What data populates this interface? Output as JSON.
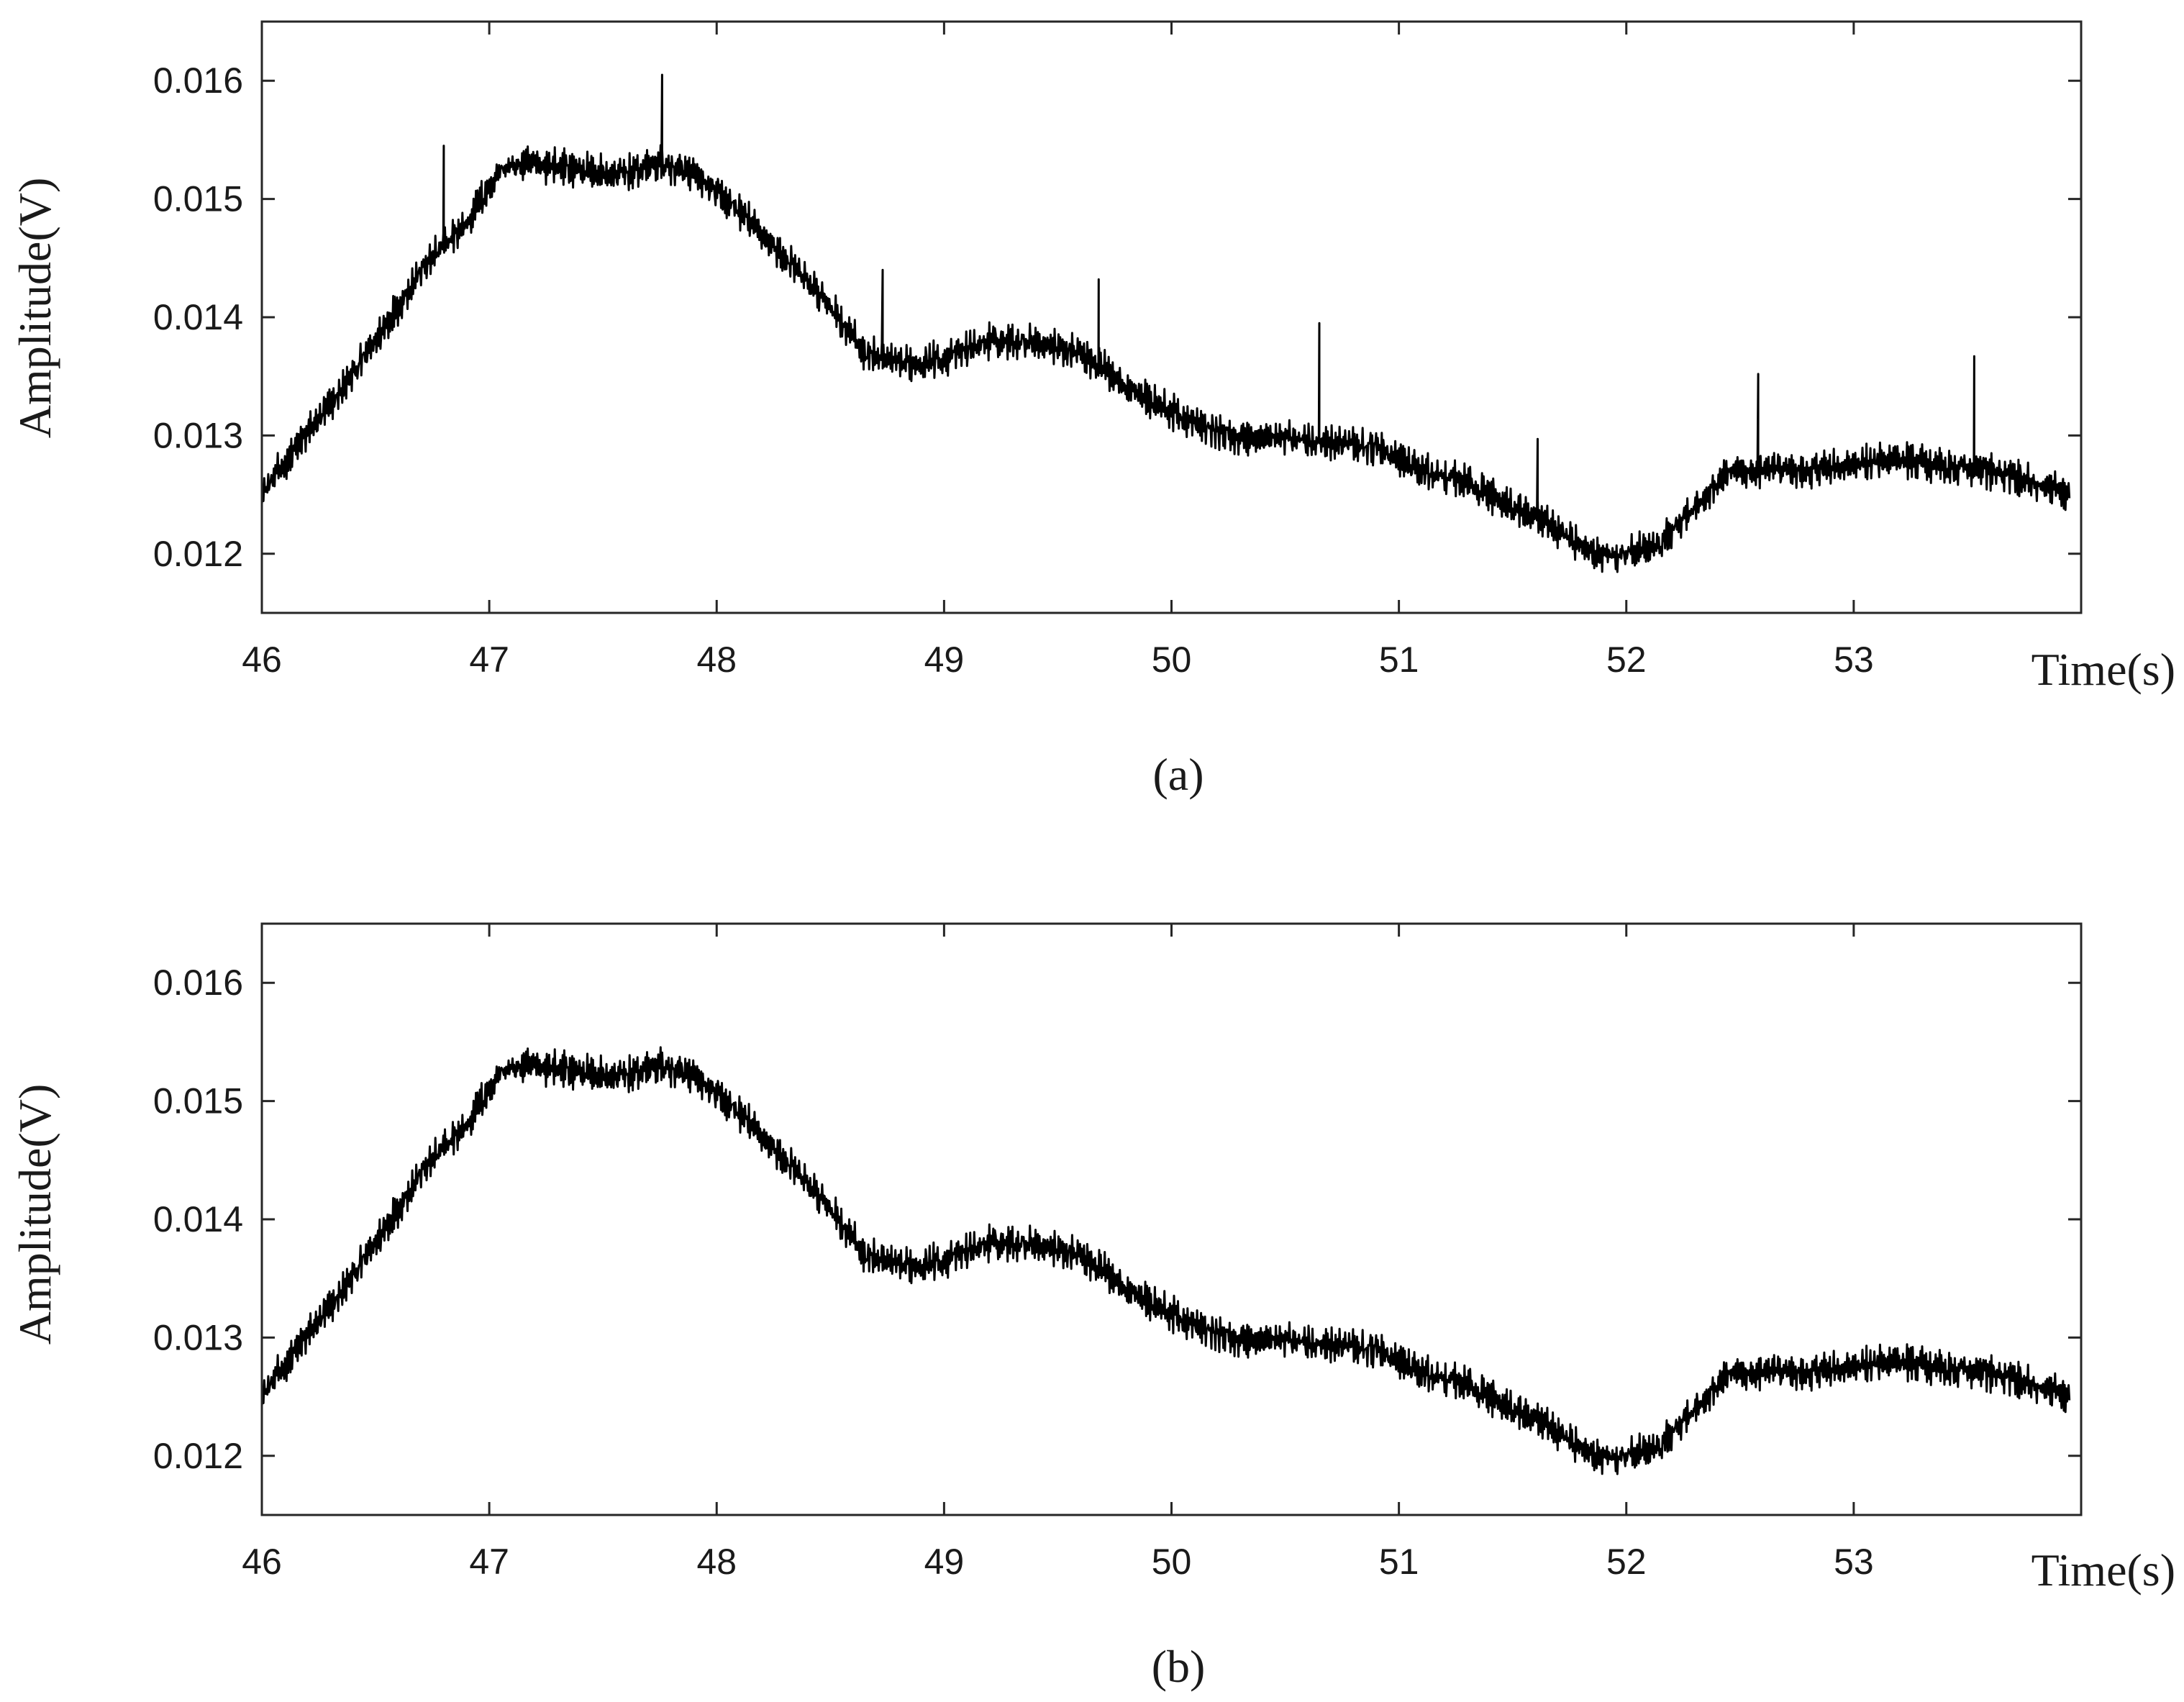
{
  "chart_data": [
    {
      "type": "line",
      "caption": "(a)",
      "xlabel": "Time(s)",
      "ylabel": "Amplitude(V)",
      "xlim": [
        46,
        54
      ],
      "ylim": [
        0.0115,
        0.0165
      ],
      "xticks": [
        46,
        47,
        48,
        49,
        50,
        51,
        52,
        53
      ],
      "yticks": [
        0.012,
        0.013,
        0.014,
        0.015,
        0.016
      ],
      "xtick_labels": [
        "46",
        "47",
        "48",
        "49",
        "50",
        "51",
        "52",
        "53"
      ],
      "ytick_labels": [
        "0.012",
        "0.013",
        "0.014",
        "0.015",
        "0.016"
      ],
      "grid": false,
      "line_color": "#000000",
      "series": [
        {
          "trend_x": [
            46.0,
            46.15,
            46.3,
            46.5,
            46.7,
            46.9,
            47.05,
            47.2,
            47.4,
            47.55,
            47.75,
            47.9,
            48.1,
            48.3,
            48.5,
            48.65,
            48.8,
            49.0,
            49.2,
            49.4,
            49.6,
            49.75,
            49.9,
            50.1,
            50.3,
            50.5,
            50.7,
            50.9,
            51.1,
            51.3,
            51.5,
            51.7,
            51.85,
            52.0,
            52.15,
            52.3,
            52.45,
            52.6,
            52.8,
            53.0,
            53.2,
            53.4,
            53.6,
            53.8,
            53.95
          ],
          "trend_y": [
            0.0125,
            0.0129,
            0.01325,
            0.0138,
            0.0144,
            0.0148,
            0.01525,
            0.0153,
            0.01525,
            0.0152,
            0.0153,
            0.0152,
            0.0149,
            0.0145,
            0.0141,
            0.0137,
            0.0136,
            0.01365,
            0.0138,
            0.0138,
            0.0137,
            0.0135,
            0.0133,
            0.0131,
            0.01298,
            0.01298,
            0.01295,
            0.0129,
            0.0127,
            0.0126,
            0.0124,
            0.0122,
            0.012,
            0.012,
            0.0121,
            0.0124,
            0.0127,
            0.0127,
            0.0127,
            0.01275,
            0.0128,
            0.01275,
            0.0127,
            0.0126,
            0.0125
          ],
          "noise_amplitude": 0.00012,
          "spikes": [
            {
              "x": 46.8,
              "y": 0.01545
            },
            {
              "x": 47.76,
              "y": 0.01605
            },
            {
              "x": 48.73,
              "y": 0.0144
            },
            {
              "x": 49.68,
              "y": 0.01432
            },
            {
              "x": 50.65,
              "y": 0.01395
            },
            {
              "x": 51.61,
              "y": 0.01297
            },
            {
              "x": 52.58,
              "y": 0.01352
            },
            {
              "x": 53.53,
              "y": 0.01367
            }
          ]
        }
      ]
    },
    {
      "type": "line",
      "caption": "(b)",
      "xlabel": "Time(s)",
      "ylabel": "Amplitude(V)",
      "xlim": [
        46,
        54
      ],
      "ylim": [
        0.0115,
        0.0165
      ],
      "xticks": [
        46,
        47,
        48,
        49,
        50,
        51,
        52,
        53
      ],
      "yticks": [
        0.012,
        0.013,
        0.014,
        0.015,
        0.016
      ],
      "xtick_labels": [
        "46",
        "47",
        "48",
        "49",
        "50",
        "51",
        "52",
        "53"
      ],
      "ytick_labels": [
        "0.012",
        "0.013",
        "0.014",
        "0.015",
        "0.016"
      ],
      "grid": false,
      "line_color": "#000000",
      "series": [
        {
          "trend_x": [
            46.0,
            46.15,
            46.3,
            46.5,
            46.7,
            46.9,
            47.05,
            47.2,
            47.4,
            47.55,
            47.75,
            47.9,
            48.1,
            48.3,
            48.5,
            48.65,
            48.8,
            49.0,
            49.2,
            49.4,
            49.6,
            49.75,
            49.9,
            50.1,
            50.3,
            50.5,
            50.7,
            50.9,
            51.1,
            51.3,
            51.5,
            51.7,
            51.85,
            52.0,
            52.15,
            52.3,
            52.45,
            52.6,
            52.8,
            53.0,
            53.2,
            53.4,
            53.6,
            53.8,
            53.95
          ],
          "trend_y": [
            0.0125,
            0.0129,
            0.01325,
            0.0138,
            0.0144,
            0.0148,
            0.01525,
            0.0153,
            0.01525,
            0.0152,
            0.0153,
            0.0152,
            0.0149,
            0.0145,
            0.0141,
            0.0137,
            0.0136,
            0.01365,
            0.0138,
            0.0138,
            0.0137,
            0.0135,
            0.0133,
            0.0131,
            0.01298,
            0.01298,
            0.01295,
            0.0129,
            0.0127,
            0.0126,
            0.0124,
            0.0122,
            0.012,
            0.012,
            0.0121,
            0.0124,
            0.0127,
            0.0127,
            0.0127,
            0.01275,
            0.0128,
            0.01275,
            0.0127,
            0.0126,
            0.0125
          ],
          "noise_amplitude": 0.00012,
          "spikes": []
        }
      ]
    }
  ]
}
